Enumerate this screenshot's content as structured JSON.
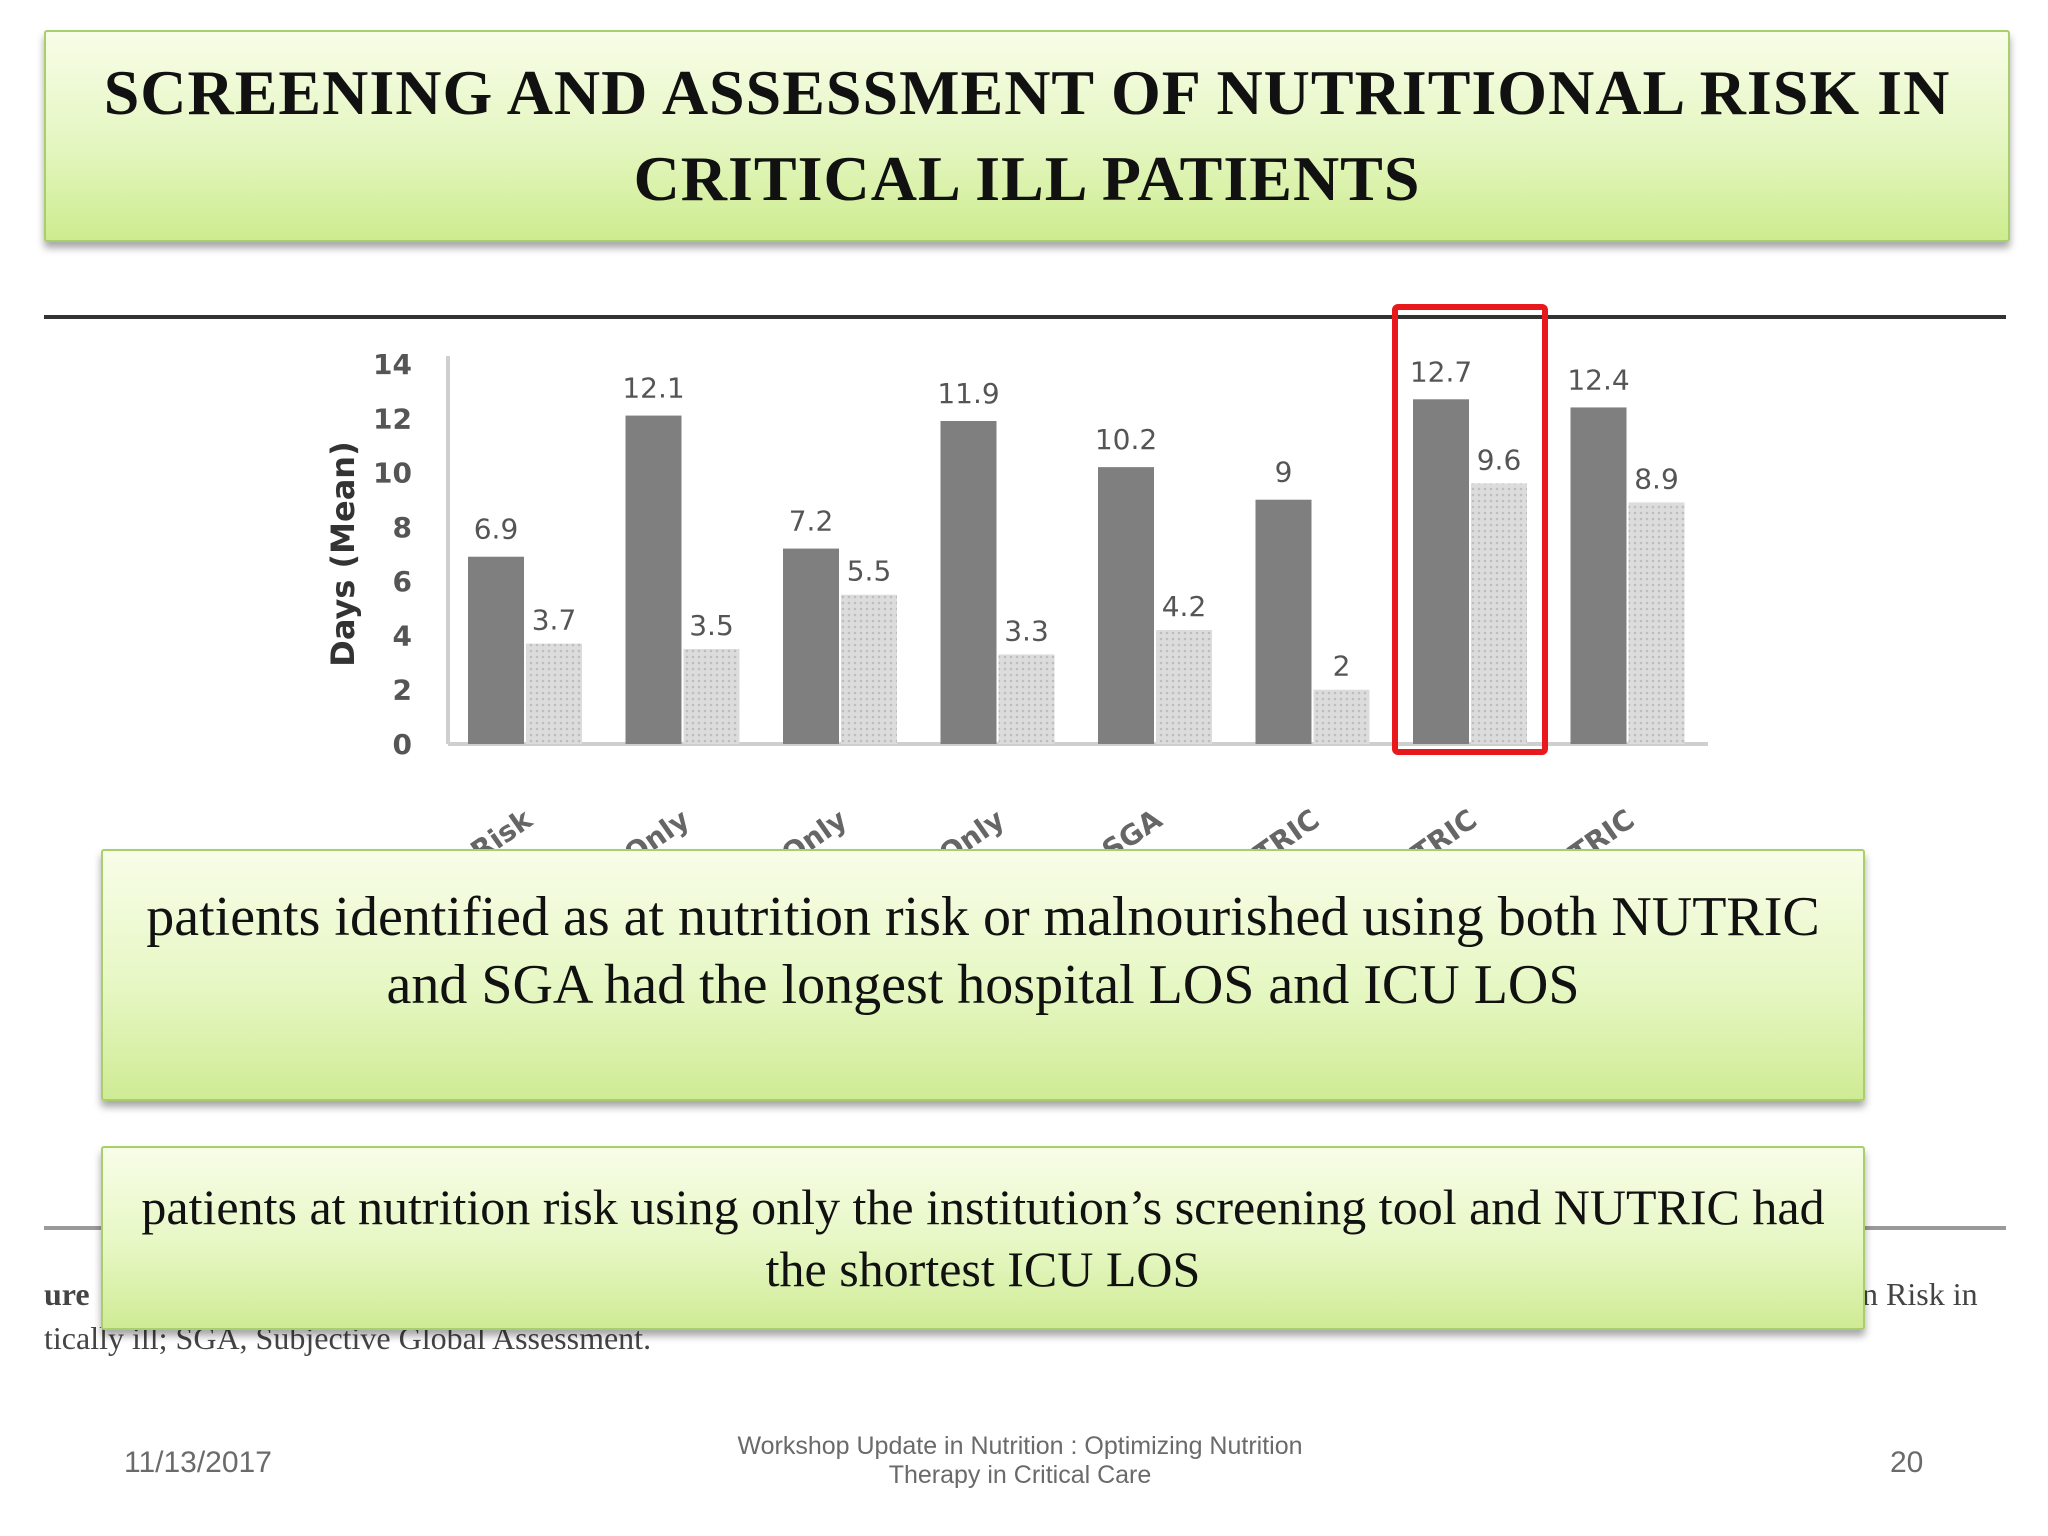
{
  "slide": {
    "title": "SCREENING AND ASSESSMENT OF NUTRITIONAL RISK IN CRITICAL ILL PATIENTS",
    "callout_1": "patients identified as at nutrition risk or malnourished using both NUTRIC and SGA had the longest hospital LOS and ICU LOS",
    "callout_2": "patients at nutrition risk using only the institution’s screening tool and NUTRIC had the shortest ICU LOS",
    "caption_left_1": "ure",
    "caption_left_2": "tically ill; SGA, Subjective Global Assessment.",
    "caption_right": "n Risk in"
  },
  "footer": {
    "date": "11/13/2017",
    "center": "Workshop Update in Nutrition : Optimizing Nutrition Therapy in Critical Care",
    "page": "20"
  },
  "chart_data": {
    "type": "bar",
    "ylabel": "Days (Mean)",
    "ylim": [
      0,
      14
    ],
    "yticks": [
      0,
      2,
      4,
      6,
      8,
      10,
      12,
      14
    ],
    "categories": [
      "No Risk",
      "P Only",
      "A Only",
      "C Only",
      "+ SGA",
      "UTRIC",
      "UTRIC",
      "UTRIC"
    ],
    "series": [
      {
        "values": [
          6.9,
          12.1,
          7.2,
          11.9,
          10.2,
          9,
          12.7,
          12.4
        ],
        "labels": [
          "6.9",
          "12.1",
          "7.2",
          "11.9",
          "10.2",
          "9",
          "12.7",
          "12.4"
        ]
      },
      {
        "values": [
          3.7,
          3.5,
          5.5,
          3.3,
          4.2,
          2,
          9.6,
          8.9
        ],
        "labels": [
          "3.7",
          "3.5",
          "5.5",
          "3.3",
          "4.2",
          "2",
          "9.6",
          "8.9"
        ]
      }
    ],
    "highlight_index": 6,
    "colors": {
      "series1": "#7f7f7f",
      "series2": "#dcdcdc",
      "highlight": "#e8191d"
    },
    "grid": false
  }
}
